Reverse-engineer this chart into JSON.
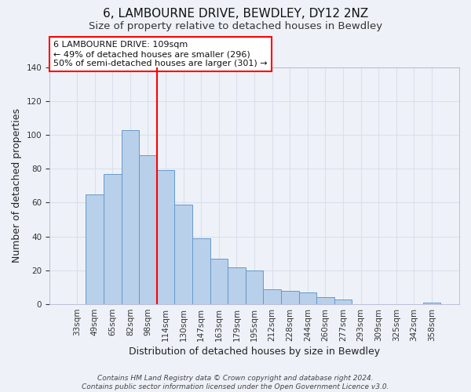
{
  "title": "6, LAMBOURNE DRIVE, BEWDLEY, DY12 2NZ",
  "subtitle": "Size of property relative to detached houses in Bewdley",
  "xlabel": "Distribution of detached houses by size in Bewdley",
  "ylabel": "Number of detached properties",
  "bar_labels": [
    "33sqm",
    "49sqm",
    "65sqm",
    "82sqm",
    "98sqm",
    "114sqm",
    "130sqm",
    "147sqm",
    "163sqm",
    "179sqm",
    "195sqm",
    "212sqm",
    "228sqm",
    "244sqm",
    "260sqm",
    "277sqm",
    "293sqm",
    "309sqm",
    "325sqm",
    "342sqm",
    "358sqm"
  ],
  "bar_values": [
    0,
    65,
    77,
    103,
    88,
    79,
    59,
    39,
    27,
    22,
    20,
    9,
    8,
    7,
    4,
    3,
    0,
    0,
    0,
    0,
    1
  ],
  "bar_color": "#b8d0ea",
  "bar_edge_color": "#6699cc",
  "vline_color": "red",
  "vline_index": 4.5,
  "ylim": [
    0,
    140
  ],
  "yticks": [
    0,
    20,
    40,
    60,
    80,
    100,
    120,
    140
  ],
  "annotation_title": "6 LAMBOURNE DRIVE: 109sqm",
  "annotation_line1": "← 49% of detached houses are smaller (296)",
  "annotation_line2": "50% of semi-detached houses are larger (301) →",
  "footer_line1": "Contains HM Land Registry data © Crown copyright and database right 2024.",
  "footer_line2": "Contains public sector information licensed under the Open Government Licence v3.0.",
  "background_color": "#eef2f8",
  "grid_color": "#d8e0ec",
  "title_fontsize": 11,
  "subtitle_fontsize": 9.5,
  "axis_label_fontsize": 9,
  "tick_fontsize": 7.5,
  "footer_fontsize": 6.5,
  "ann_fontsize": 8
}
